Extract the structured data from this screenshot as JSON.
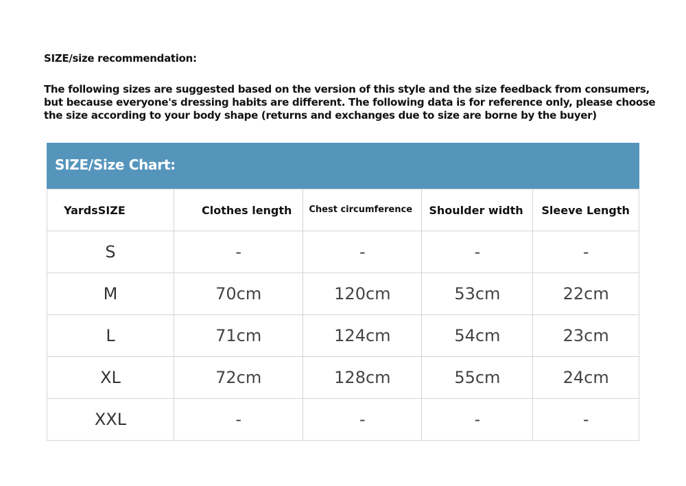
{
  "recommendation_title": "SIZE/size recommendation:",
  "intro_text": "The following sizes are suggested based on the version of this style and the size feedback from consumers, but because everyone's dressing habits are different. The following data is for reference only, please choose the size according to your body shape (returns and exchanges due to size are borne by the buyer)",
  "chart_title": "SIZE/Size Chart:",
  "header_color": "#5595bc",
  "columns": [
    "YardsSIZE",
    "Clothes length",
    "Chest circumference",
    "Shoulder width",
    "Sleeve Length"
  ],
  "rows": [
    [
      "S",
      "-",
      "-",
      "-",
      "-"
    ],
    [
      "M",
      "70cm",
      "120cm",
      "53cm",
      "22cm"
    ],
    [
      "L",
      "71cm",
      "124cm",
      "54cm",
      "23cm"
    ],
    [
      "XL",
      "72cm",
      "128cm",
      "55cm",
      "24cm"
    ],
    [
      "XXL",
      "-",
      "-",
      "-",
      "-"
    ]
  ]
}
